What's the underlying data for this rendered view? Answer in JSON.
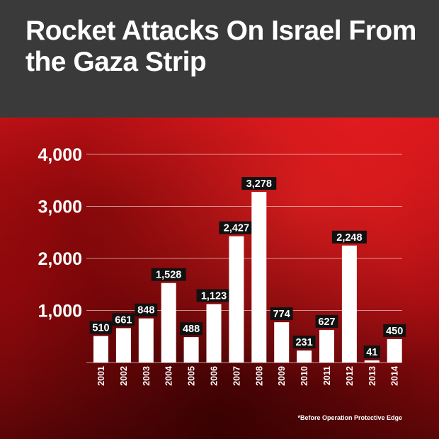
{
  "title": "Rocket Attacks On Israel From the Gaza Strip",
  "footnote": "*Before Operation Protective Edge",
  "colors": {
    "header_bg": "#3a3a3a",
    "background": "#b40c10",
    "bar": "#ffffff",
    "label_bg": "#111111",
    "label_text": "#ffffff",
    "text": "#ffffff"
  },
  "chart_data": {
    "type": "bar",
    "title": "Rocket Attacks On Israel From the Gaza Strip",
    "xlabel": "",
    "ylabel": "",
    "categories": [
      "2001",
      "2002",
      "2003",
      "2004",
      "2005",
      "2006",
      "2007",
      "2008",
      "2009",
      "2010",
      "2011",
      "2012",
      "2013",
      "2014"
    ],
    "values": [
      510,
      661,
      848,
      1528,
      488,
      1123,
      2427,
      3278,
      774,
      231,
      627,
      2248,
      41,
      450
    ],
    "value_labels": [
      "510",
      "661",
      "848",
      "1,528",
      "488",
      "1,123",
      "2,427",
      "3,278",
      "774",
      "231",
      "627",
      "2,248",
      "41",
      "450"
    ],
    "yticks": [
      1000,
      2000,
      3000,
      4000
    ],
    "ytick_labels": [
      "1,000",
      "2,000",
      "3,000",
      "4,000"
    ],
    "ylim": [
      0,
      4000
    ],
    "grid": true,
    "legend": "none"
  }
}
